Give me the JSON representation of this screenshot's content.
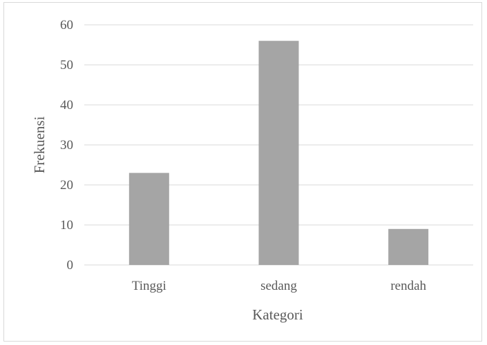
{
  "chart_data": {
    "type": "bar",
    "categories": [
      "Tinggi",
      "sedang",
      "rendah"
    ],
    "values": [
      23,
      56,
      9
    ],
    "title": "",
    "xlabel": "Kategori",
    "ylabel": "Frekuensi",
    "ylim": [
      0,
      60
    ],
    "yticks": [
      0,
      10,
      20,
      30,
      40,
      50,
      60
    ],
    "grid": true,
    "legend": "none",
    "colors": {
      "bar": "#a5a5a5",
      "grid": "#d9d9d9",
      "text": "#595959"
    }
  }
}
